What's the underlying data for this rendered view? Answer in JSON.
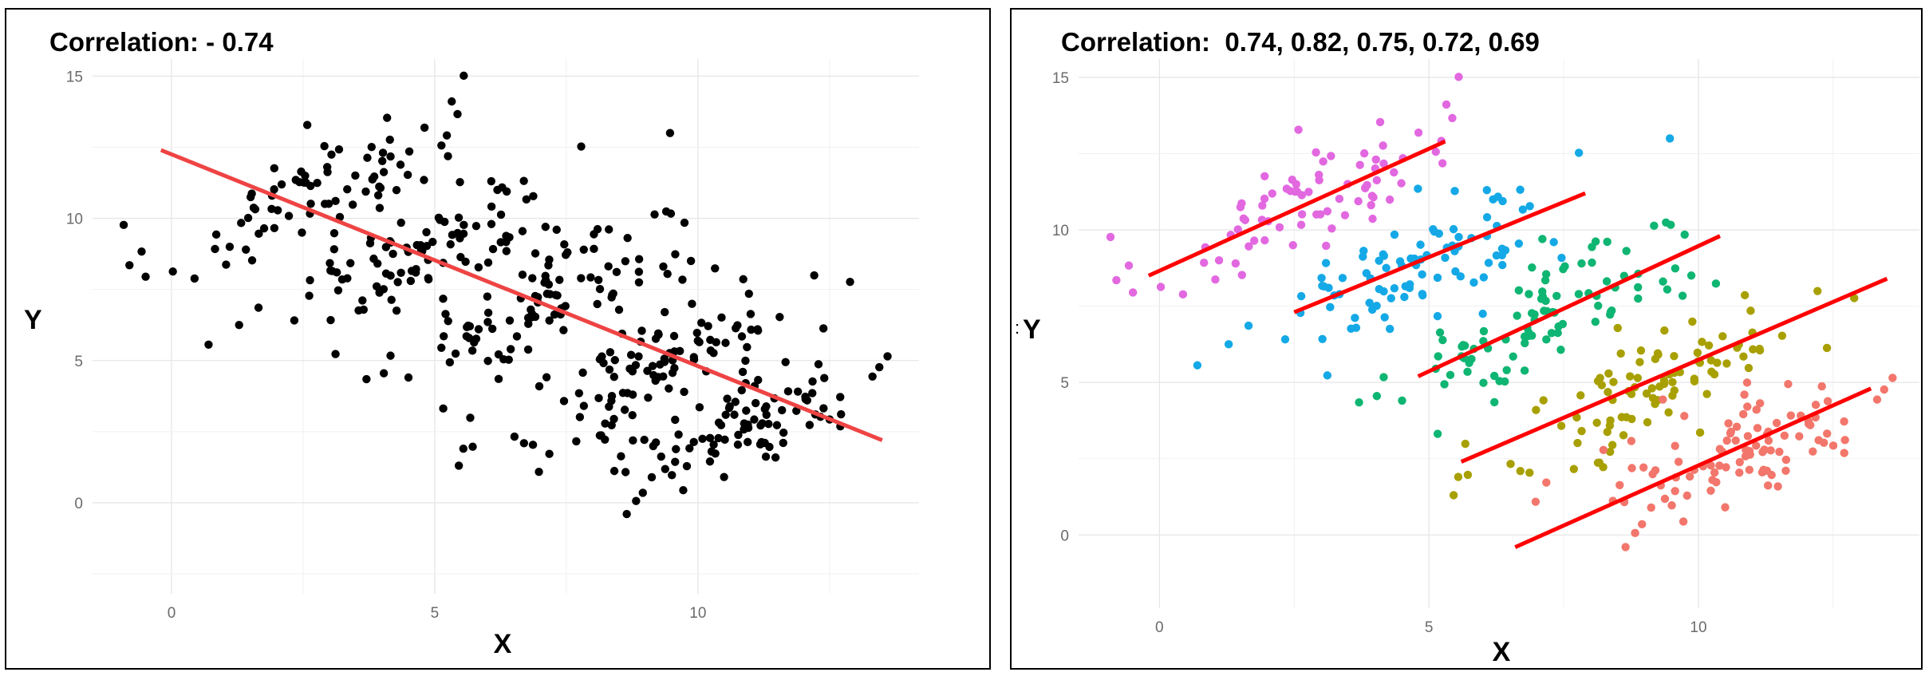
{
  "chart_data": [
    {
      "type": "scatter",
      "title": "Correlation: - 0.74",
      "xlabel": "X",
      "ylabel": "Y",
      "xlim": [
        -1.5,
        14.2
      ],
      "ylim": [
        -3.2,
        15.6
      ],
      "x_ticks": [
        0,
        5,
        10
      ],
      "y_ticks": [
        0,
        5,
        10,
        15
      ],
      "grid": true,
      "point_color": "#000000",
      "trendline": {
        "color": "#ef4444",
        "x": [
          -0.2,
          13.5
        ],
        "y": [
          12.4,
          2.2
        ]
      }
    },
    {
      "type": "scatter",
      "title": "Correlation:  0.74, 0.82, 0.75, 0.72, 0.69",
      "xlabel": "X",
      "ylabel": "Y",
      "stray_label": ":",
      "xlim": [
        -1.5,
        14.1
      ],
      "ylim": [
        -2.4,
        15.6
      ],
      "x_ticks": [
        0,
        5,
        10
      ],
      "y_ticks": [
        0,
        5,
        10,
        15
      ],
      "grid": true,
      "groups": [
        {
          "color": "#e268e0",
          "center": [
            2.6,
            10.9
          ],
          "slope": 0.85,
          "n": 80,
          "trendline": {
            "x": [
              -0.2,
              5.3
            ],
            "y": [
              8.5,
              12.9
            ]
          }
        },
        {
          "color": "#14a9e6",
          "center": [
            4.8,
            8.9
          ],
          "slope": 0.72,
          "n": 95,
          "trendline": {
            "x": [
              2.5,
              7.9
            ],
            "y": [
              7.3,
              11.2
            ]
          }
        },
        {
          "color": "#0fb572",
          "center": [
            7.3,
            7.3
          ],
          "slope": 0.85,
          "n": 95,
          "trendline": {
            "x": [
              4.8,
              10.4
            ],
            "y": [
              5.2,
              9.8
            ]
          }
        },
        {
          "color": "#a8a000",
          "center": [
            9.2,
            4.8
          ],
          "slope": 0.72,
          "n": 95,
          "trendline": {
            "x": [
              5.6,
              13.5
            ],
            "y": [
              2.4,
              8.4
            ]
          }
        },
        {
          "color": "#f2766b",
          "center": [
            10.9,
            2.9
          ],
          "slope": 0.72,
          "n": 100,
          "trendline": {
            "x": [
              6.6,
              13.2
            ],
            "y": [
              -0.4,
              4.8
            ]
          }
        }
      ],
      "trendline_color": "#ff0000"
    }
  ]
}
